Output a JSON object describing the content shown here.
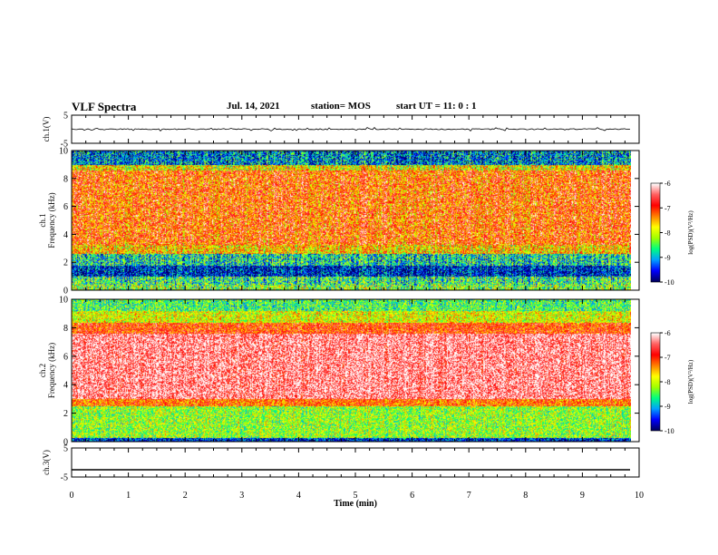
{
  "header": {
    "title": "VLF Spectra",
    "date": "Jul. 14, 2021",
    "station": "station= MOS",
    "start_ut": "start UT =   11: 0  : 1"
  },
  "colors": {
    "spectrogram_scale": [
      "#000060",
      "#0000ff",
      "#00a0ff",
      "#00ff80",
      "#a0ff00",
      "#ffff00",
      "#ff8000",
      "#ff0000",
      "#ff6060",
      "#ffffff"
    ]
  },
  "chart_data": [
    {
      "type": "line",
      "panel": "ch1-waveform",
      "ylabel": "ch.1(V)",
      "yticks": [
        "5",
        "-5"
      ],
      "ylim": [
        -5,
        5
      ],
      "xlim": [
        0,
        10
      ],
      "trace_level": 0
    },
    {
      "type": "heatmap",
      "panel": "ch1-spectrogram",
      "ylabel": "ch.1\nFrequency (kHz)",
      "ylabel_lines": [
        "ch.1",
        "Frequency (kHz)"
      ],
      "yticks": [
        "0",
        "2",
        "4",
        "6",
        "8",
        "10"
      ],
      "ylim": [
        0,
        10
      ],
      "xlim": [
        0,
        9.85
      ],
      "colorbar": {
        "label": "log(PSD)(V²/Hz)",
        "ticks": [
          "-6",
          "-7",
          "-8",
          "-9",
          "-10"
        ],
        "range": [
          -10,
          -6
        ]
      },
      "bands_khz": [
        {
          "from": 0,
          "to": 0.4,
          "level": -8.3
        },
        {
          "from": 0.4,
          "to": 1.0,
          "level": -8.6
        },
        {
          "from": 1.0,
          "to": 1.8,
          "level": -9.6
        },
        {
          "from": 1.8,
          "to": 2.6,
          "level": -8.8
        },
        {
          "from": 2.6,
          "to": 3.3,
          "level": -7.6
        },
        {
          "from": 3.3,
          "to": 8.6,
          "level": -7.1
        },
        {
          "from": 8.6,
          "to": 9.0,
          "level": -7.8
        },
        {
          "from": 9.0,
          "to": 10,
          "level": -9.2
        }
      ]
    },
    {
      "type": "heatmap",
      "panel": "ch2-spectrogram",
      "ylabel": "ch.2\nFrequency (kHz)",
      "ylabel_lines": [
        "ch.2",
        "Frequency (kHz)"
      ],
      "yticks": [
        "0",
        "2",
        "4",
        "6",
        "8",
        "10"
      ],
      "ylim": [
        0,
        10
      ],
      "xlim": [
        0,
        9.85
      ],
      "colorbar": {
        "label": "log(PSD)(V²/Hz)",
        "ticks": [
          "-6",
          "-7",
          "-8",
          "-9",
          "-10"
        ],
        "range": [
          -10,
          -6
        ]
      },
      "bands_khz": [
        {
          "from": 0,
          "to": 0.3,
          "level": -9.5
        },
        {
          "from": 0.3,
          "to": 2.5,
          "level": -8.2
        },
        {
          "from": 2.5,
          "to": 3.0,
          "level": -7.2
        },
        {
          "from": 3.0,
          "to": 7.6,
          "level": -6.3
        },
        {
          "from": 7.6,
          "to": 8.4,
          "level": -7.0
        },
        {
          "from": 8.4,
          "to": 9.2,
          "level": -7.9
        },
        {
          "from": 9.2,
          "to": 10,
          "level": -8.5
        }
      ]
    },
    {
      "type": "line",
      "panel": "ch3-waveform",
      "ylabel": "ch.3(V)",
      "yticks": [
        "5",
        "-5"
      ],
      "ylim": [
        -5,
        5
      ],
      "xlim": [
        0,
        10
      ],
      "trace_level": -2.5
    }
  ],
  "xaxis": {
    "label": "Time (min)",
    "ticks": [
      "0",
      "1",
      "2",
      "3",
      "4",
      "5",
      "6",
      "7",
      "8",
      "9",
      "10"
    ],
    "range": [
      0,
      10
    ]
  }
}
